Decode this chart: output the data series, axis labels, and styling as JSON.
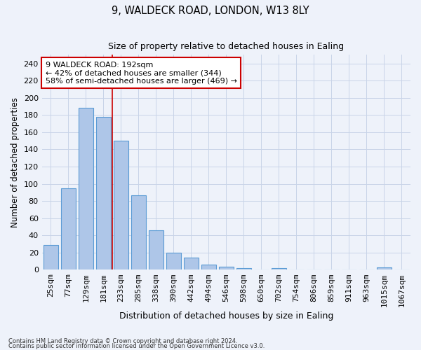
{
  "title": "9, WALDECK ROAD, LONDON, W13 8LY",
  "subtitle": "Size of property relative to detached houses in Ealing",
  "xlabel": "Distribution of detached houses by size in Ealing",
  "ylabel": "Number of detached properties",
  "categories": [
    "25sqm",
    "77sqm",
    "129sqm",
    "181sqm",
    "233sqm",
    "285sqm",
    "338sqm",
    "390sqm",
    "442sqm",
    "494sqm",
    "546sqm",
    "598sqm",
    "650sqm",
    "702sqm",
    "754sqm",
    "806sqm",
    "859sqm",
    "911sqm",
    "963sqm",
    "1015sqm",
    "1067sqm"
  ],
  "values": [
    29,
    95,
    188,
    178,
    150,
    87,
    46,
    20,
    14,
    6,
    4,
    2,
    0,
    2,
    0,
    0,
    0,
    0,
    0,
    3,
    0
  ],
  "bar_color": "#aec6e8",
  "bar_edge_color": "#5b9bd5",
  "grid_color": "#c8d4e8",
  "background_color": "#eef2fa",
  "vline_x_index": 3.5,
  "vline_color": "#cc0000",
  "annotation_text": "9 WALDECK ROAD: 192sqm\n← 42% of detached houses are smaller (344)\n58% of semi-detached houses are larger (469) →",
  "annotation_box_color": "white",
  "annotation_box_edge": "#cc0000",
  "ylim": [
    0,
    250
  ],
  "yticks": [
    0,
    20,
    40,
    60,
    80,
    100,
    120,
    140,
    160,
    180,
    200,
    220,
    240
  ],
  "footer1": "Contains HM Land Registry data © Crown copyright and database right 2024.",
  "footer2": "Contains public sector information licensed under the Open Government Licence v3.0."
}
